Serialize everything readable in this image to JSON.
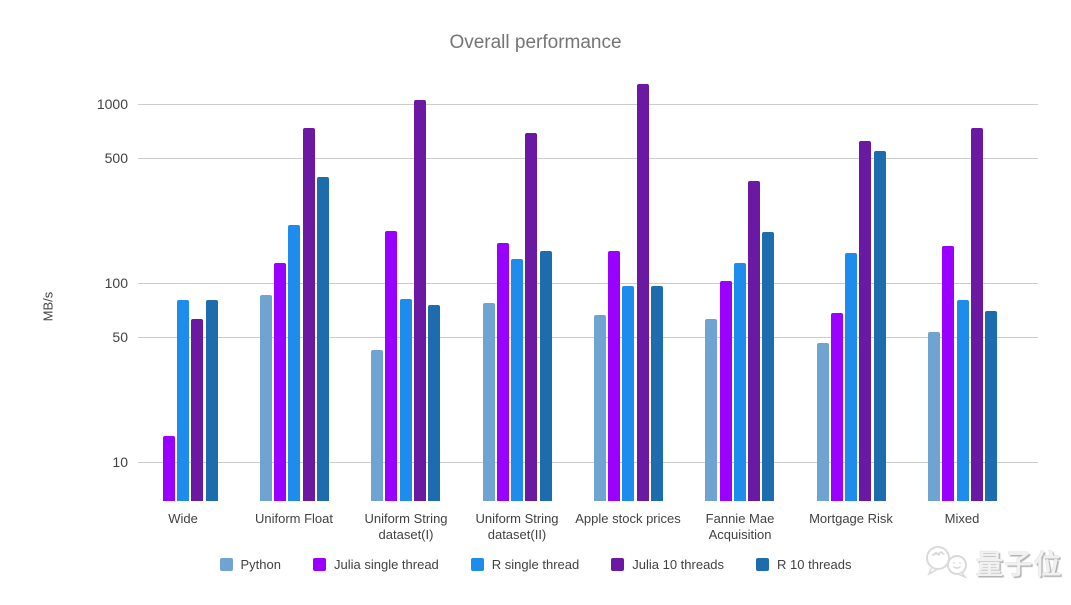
{
  "chart_data": {
    "type": "bar",
    "title": "Overall performance",
    "xlabel": "",
    "ylabel": "MB/s",
    "y_scale": "log",
    "grid": true,
    "legend_position": "bottom",
    "ylim": [
      6,
      1500
    ],
    "y_ticks": [
      1000,
      500,
      100,
      50,
      10
    ],
    "categories": [
      "Wide",
      "Uniform Float",
      "Uniform String dataset(I)",
      "Uniform String dataset(II)",
      "Apple stock prices",
      "Fannie Mae Acquisition",
      "Mortgage Risk",
      "Mixed"
    ],
    "series": [
      {
        "name": "Python",
        "color": "#6FA3D2",
        "values": [
          null,
          86,
          42,
          77,
          66,
          63,
          46,
          53
        ]
      },
      {
        "name": "Julia single thread",
        "color": "#9900FF",
        "values": [
          14,
          130,
          195,
          167,
          151,
          102,
          68,
          161
        ]
      },
      {
        "name": "R single thread",
        "color": "#1E8CEC",
        "values": [
          80,
          210,
          81,
          136,
          96,
          129,
          148,
          80
        ]
      },
      {
        "name": "Julia 10 threads",
        "color": "#6B18A2",
        "values": [
          63,
          730,
          1050,
          690,
          1300,
          370,
          620,
          730
        ]
      },
      {
        "name": "R 10 threads",
        "color": "#1D6DAE",
        "values": [
          80,
          390,
          75,
          151,
          96,
          193,
          545,
          70
        ]
      }
    ]
  },
  "watermark": {
    "text": "量子位",
    "icon": "chat-bubbles-icon"
  }
}
